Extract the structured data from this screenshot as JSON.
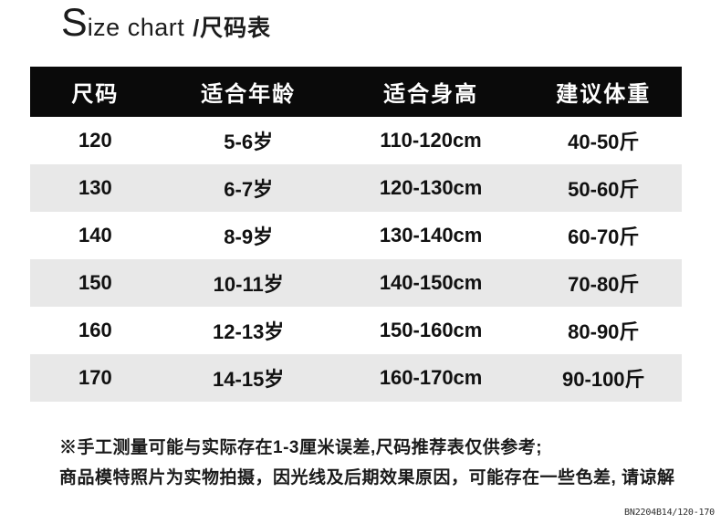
{
  "title": {
    "cap": "S",
    "en": "ize chart",
    "zh": "/尺码表"
  },
  "chart_data": {
    "type": "table",
    "title": "Size chart /尺码表",
    "columns": [
      "尺码",
      "适合年龄",
      "适合身高",
      "建议体重"
    ],
    "rows": [
      [
        "120",
        "5-6岁",
        "110-120cm",
        "40-50斤"
      ],
      [
        "130",
        "6-7岁",
        "120-130cm",
        "50-60斤"
      ],
      [
        "140",
        "8-9岁",
        "130-140cm",
        "60-70斤"
      ],
      [
        "150",
        "10-11岁",
        "140-150cm",
        "70-80斤"
      ],
      [
        "160",
        "12-13岁",
        "150-160cm",
        "80-90斤"
      ],
      [
        "170",
        "14-15岁",
        "160-170cm",
        "90-100斤"
      ]
    ],
    "layout": {
      "header_bg": "#0a0a0a",
      "header_text": "#ffffff",
      "alt_row_bg": "#e8e8e8",
      "alt_rows": [
        1,
        3,
        5
      ]
    }
  },
  "notes": {
    "line1": "※手工测量可能与实际存在1-3厘米误差,尺码推荐表仅供参考;",
    "line2": "商品模特照片为实物拍摄，因光线及后期效果原因，可能存在一些色差, 请谅解"
  },
  "footer": {
    "code": "BN2204B14/120-170"
  }
}
